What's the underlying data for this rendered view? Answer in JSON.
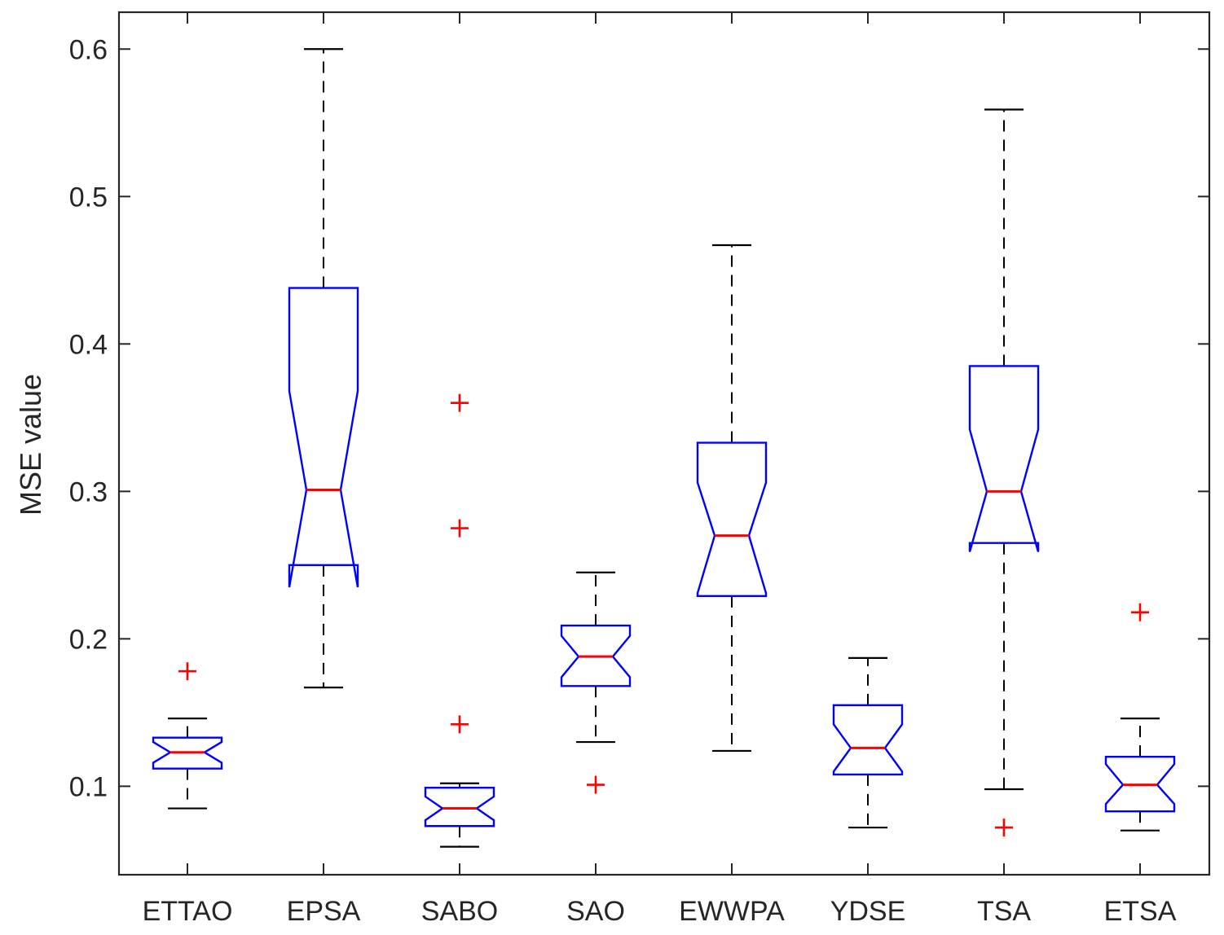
{
  "chart_data": {
    "type": "box",
    "title": "",
    "xlabel": "",
    "ylabel": "MSE value",
    "ylim": [
      0.04,
      0.625
    ],
    "yticks": [
      0.1,
      0.2,
      0.3,
      0.4,
      0.5,
      0.6
    ],
    "ytick_labels": [
      "0.1",
      "0.2",
      "0.3",
      "0.4",
      "0.5",
      "0.6"
    ],
    "notched": true,
    "colors": {
      "box": "#0000ff",
      "median": "#ff0000",
      "whisker": "#000000",
      "outlier": "#ff0000",
      "axis": "#262626"
    },
    "categories": [
      "ETTAO",
      "EPSA",
      "SABO",
      "SAO",
      "EWWPA",
      "YDSE",
      "TSA",
      "ETSA"
    ],
    "boxes": [
      {
        "name": "ETTAO",
        "whisker_low": 0.085,
        "q1": 0.112,
        "median": 0.123,
        "q3": 0.133,
        "whisker_high": 0.146,
        "notch_low": 0.116,
        "notch_high": 0.13,
        "outliers": [
          0.178
        ]
      },
      {
        "name": "EPSA",
        "whisker_low": 0.167,
        "q1": 0.25,
        "median": 0.301,
        "q3": 0.438,
        "whisker_high": 0.6,
        "notch_low": 0.235,
        "notch_high": 0.368,
        "outliers": []
      },
      {
        "name": "SABO",
        "whisker_low": 0.059,
        "q1": 0.073,
        "median": 0.085,
        "q3": 0.099,
        "whisker_high": 0.102,
        "notch_low": 0.077,
        "notch_high": 0.093,
        "outliers": [
          0.142,
          0.275,
          0.36
        ]
      },
      {
        "name": "SAO",
        "whisker_low": 0.13,
        "q1": 0.168,
        "median": 0.188,
        "q3": 0.209,
        "whisker_high": 0.245,
        "notch_low": 0.174,
        "notch_high": 0.202,
        "outliers": [
          0.101
        ]
      },
      {
        "name": "EWWPA",
        "whisker_low": 0.124,
        "q1": 0.229,
        "median": 0.27,
        "q3": 0.333,
        "whisker_high": 0.467,
        "notch_low": 0.231,
        "notch_high": 0.306,
        "outliers": []
      },
      {
        "name": "YDSE",
        "whisker_low": 0.072,
        "q1": 0.108,
        "median": 0.126,
        "q3": 0.155,
        "whisker_high": 0.187,
        "notch_low": 0.11,
        "notch_high": 0.142,
        "outliers": []
      },
      {
        "name": "TSA",
        "whisker_low": 0.098,
        "q1": 0.265,
        "median": 0.3,
        "q3": 0.385,
        "whisker_high": 0.559,
        "notch_low": 0.259,
        "notch_high": 0.342,
        "outliers": [
          0.072
        ]
      },
      {
        "name": "ETSA",
        "whisker_low": 0.07,
        "q1": 0.083,
        "median": 0.101,
        "q3": 0.12,
        "whisker_high": 0.146,
        "notch_low": 0.088,
        "notch_high": 0.115,
        "outliers": [
          0.218
        ]
      }
    ]
  }
}
